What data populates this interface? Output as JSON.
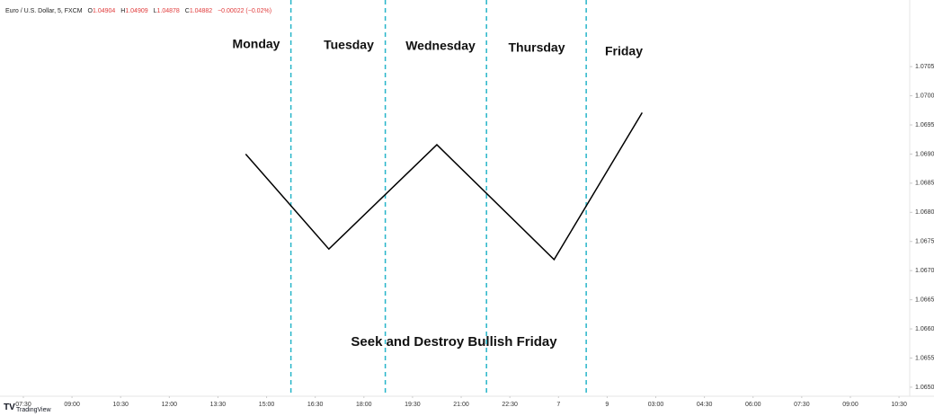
{
  "chart_data": {
    "type": "line",
    "header": {
      "symbol": "Euro / U.S. Dollar, 5, FXCM",
      "o_label": "O",
      "o": "1.04904",
      "h_label": "H",
      "h": "1.04909",
      "l_label": "L",
      "l": "1.04878",
      "c_label": "C",
      "c": "1.04882",
      "change": "−0.00022 (−0.02%)"
    },
    "annotations": [
      "Monday",
      "Tuesday",
      "Wednesday",
      "Thursday",
      "Friday"
    ],
    "caption": "Seek and Destroy Bullish Friday",
    "brand": "TradingView",
    "series": [
      {
        "name": null,
        "color": "#000000",
        "x": [
          4.57,
          6.28,
          8.5,
          10.91,
          12.72
        ],
        "values": [
          1.069,
          1.06737,
          1.06916,
          1.06719,
          1.06971
        ]
      }
    ],
    "vlines": [
      5.5,
      7.44,
      9.52,
      11.57
    ],
    "vline_color": "#26b5c9",
    "xlim": [
      -0.48,
      18.22
    ],
    "xticks": [
      {
        "value": 0,
        "label": "07:30"
      },
      {
        "value": 1,
        "label": "09:00"
      },
      {
        "value": 2,
        "label": "10:30"
      },
      {
        "value": 3,
        "label": "12:00"
      },
      {
        "value": 4,
        "label": "13:30"
      },
      {
        "value": 5,
        "label": "15:00"
      },
      {
        "value": 6,
        "label": "16:30"
      },
      {
        "value": 7,
        "label": "18:00"
      },
      {
        "value": 8,
        "label": "19:30"
      },
      {
        "value": 9,
        "label": "21:00"
      },
      {
        "value": 10,
        "label": "22:30"
      },
      {
        "value": 11,
        "label": "7"
      },
      {
        "value": 12,
        "label": "9"
      },
      {
        "value": 13,
        "label": "03:00"
      },
      {
        "value": 14,
        "label": "04:30"
      },
      {
        "value": 15,
        "label": "06:00"
      },
      {
        "value": 16,
        "label": "07:30"
      },
      {
        "value": 17,
        "label": "09:00"
      },
      {
        "value": 18,
        "label": "10:30"
      }
    ],
    "ylim": [
      1.06486,
      1.07152
    ],
    "yticks": [
      {
        "value": 1.065,
        "label": "1.0650"
      },
      {
        "value": 1.0655,
        "label": "1.0655"
      },
      {
        "value": 1.066,
        "label": "1.0660"
      },
      {
        "value": 1.0665,
        "label": "1.0665"
      },
      {
        "value": 1.067,
        "label": "1.0670"
      },
      {
        "value": 1.0675,
        "label": "1.0675"
      },
      {
        "value": 1.068,
        "label": "1.0680"
      },
      {
        "value": 1.0685,
        "label": "1.0685"
      },
      {
        "value": 1.069,
        "label": "1.0690"
      },
      {
        "value": 1.0695,
        "label": "1.0695"
      },
      {
        "value": 1.07,
        "label": "1.0700"
      },
      {
        "value": 1.0705,
        "label": "1.0705"
      }
    ]
  }
}
